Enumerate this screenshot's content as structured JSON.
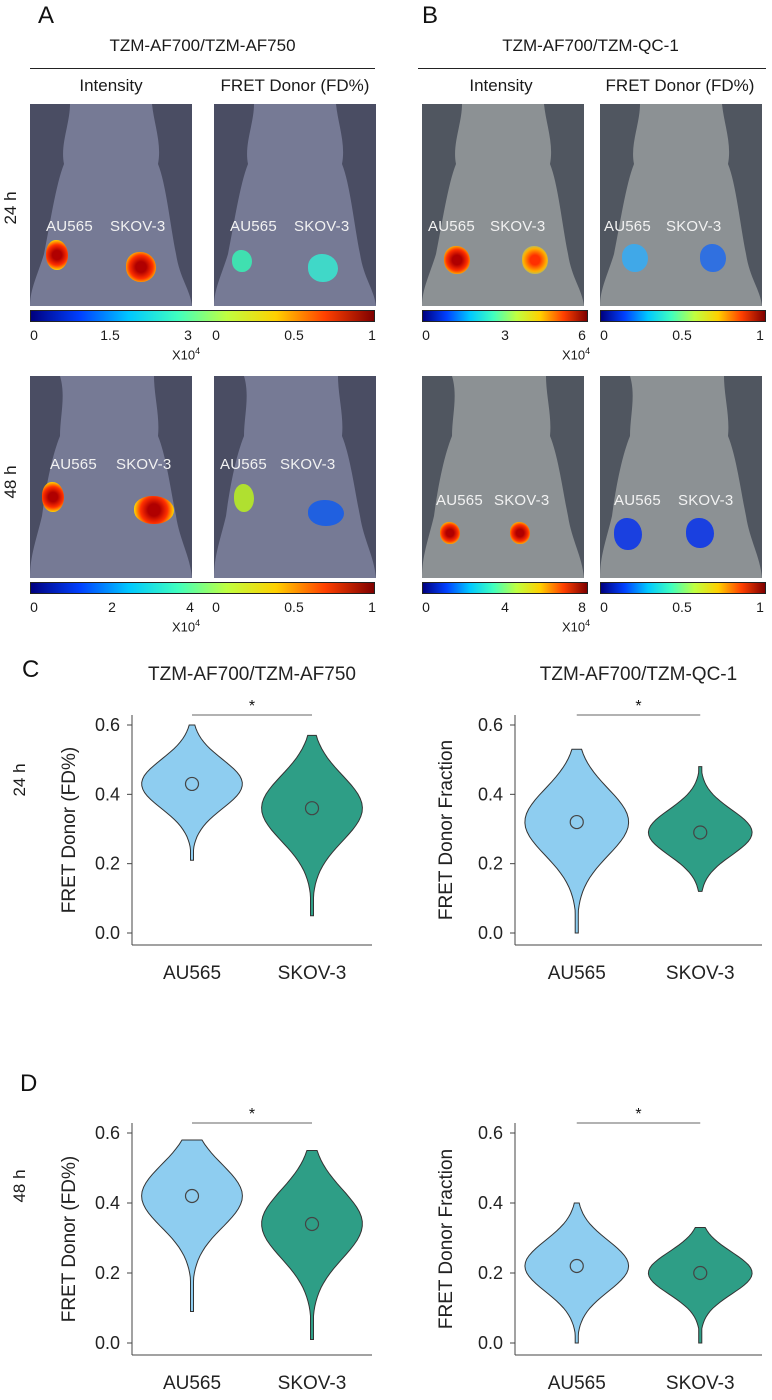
{
  "panels": {
    "A": {
      "letter": "A",
      "title": "TZM-AF700/TZM-AF750",
      "col_intensity": "Intensity",
      "col_fret": "FRET Donor (FD%)",
      "row_24": "24 h",
      "row_48": "48 h",
      "tumor_left": "AU565",
      "tumor_right": "SKOV-3",
      "cbar_24_intensity": [
        "0",
        "1.5",
        "3"
      ],
      "cbar_48_intensity": [
        "0",
        "2",
        "4"
      ],
      "cbar_fret": [
        "0",
        "0.5",
        "1"
      ],
      "multiplier_base": "X10",
      "multiplier_exp": "4"
    },
    "B": {
      "letter": "B",
      "title": "TZM-AF700/TZM-QC-1",
      "col_intensity": "Intensity",
      "col_fret": "FRET Donor (FD%)",
      "tumor_left": "AU565",
      "tumor_right": "SKOV-3",
      "cbar_24_intensity": [
        "0",
        "3",
        "6"
      ],
      "cbar_48_intensity": [
        "0",
        "4",
        "8"
      ],
      "cbar_fret": [
        "0",
        "0.5",
        "1"
      ],
      "multiplier_base": "X10",
      "multiplier_exp": "4"
    },
    "C": {
      "letter": "C",
      "row": "24 h"
    },
    "D": {
      "letter": "D",
      "row": "48 h"
    }
  },
  "colors": {
    "au565": "#8ecdf0",
    "skov3": "#2e9e86",
    "mouse_bg": "#4a4d63",
    "mouse_body": "#767a95"
  },
  "chart_data": [
    {
      "id": "C-left",
      "type": "violin",
      "title": "TZM-AF700/TZM-AF750",
      "ylabel": "FRET Donor  (FD%)",
      "categories": [
        "AU565",
        "SKOV-3"
      ],
      "ylim": [
        0,
        0.6
      ],
      "yticks": [
        "0.0",
        "0.2",
        "0.4",
        "0.6"
      ],
      "medians": [
        0.43,
        0.36
      ],
      "ranges": [
        [
          0.21,
          0.6
        ],
        [
          0.05,
          0.57
        ]
      ],
      "significance": "*"
    },
    {
      "id": "C-right",
      "type": "violin",
      "title": "TZM-AF700/TZM-QC-1",
      "ylabel": "FRET Donor  Fraction",
      "categories": [
        "AU565",
        "SKOV-3"
      ],
      "ylim": [
        0,
        0.6
      ],
      "yticks": [
        "0.0",
        "0.2",
        "0.4",
        "0.6"
      ],
      "medians": [
        0.32,
        0.29
      ],
      "ranges": [
        [
          0.0,
          0.53
        ],
        [
          0.12,
          0.48
        ]
      ],
      "significance": "*"
    },
    {
      "id": "D-left",
      "type": "violin",
      "title": "",
      "ylabel": "FRET Donor  (FD%)",
      "categories": [
        "AU565",
        "SKOV-3"
      ],
      "ylim": [
        0,
        0.6
      ],
      "yticks": [
        "0.0",
        "0.2",
        "0.4",
        "0.6"
      ],
      "medians": [
        0.42,
        0.34
      ],
      "ranges": [
        [
          0.09,
          0.58
        ],
        [
          0.01,
          0.55
        ]
      ],
      "significance": "*"
    },
    {
      "id": "D-right",
      "type": "violin",
      "title": "",
      "ylabel": "FRET Donor  Fraction",
      "categories": [
        "AU565",
        "SKOV-3"
      ],
      "ylim": [
        0,
        0.6
      ],
      "yticks": [
        "0.0",
        "0.2",
        "0.4",
        "0.6"
      ],
      "medians": [
        0.22,
        0.2
      ],
      "ranges": [
        [
          0.0,
          0.4
        ],
        [
          0.0,
          0.33
        ]
      ],
      "significance": "*"
    }
  ]
}
